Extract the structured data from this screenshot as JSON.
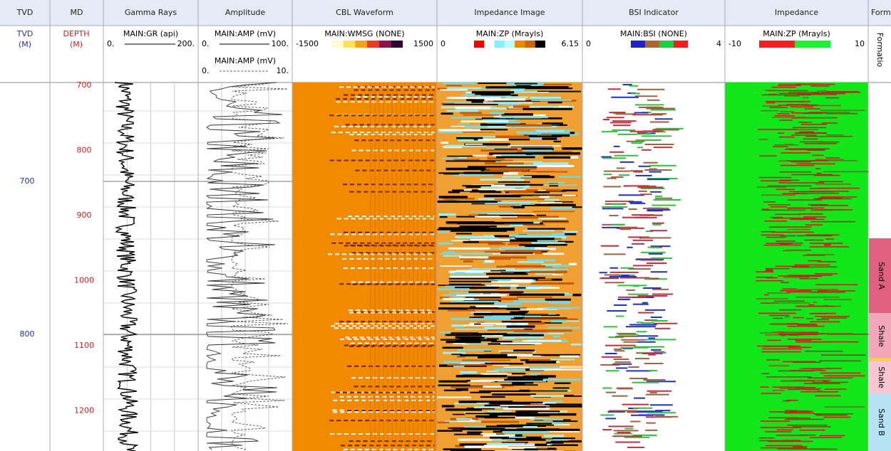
{
  "headers": [
    "TVD",
    "MD",
    "Gamma Rays",
    "Amplitude",
    "CBL Waveform",
    "Impedance Image",
    "BSI Indicator",
    "Impedance",
    "Form"
  ],
  "scales": {
    "tvd": {
      "name": "TVD",
      "unit": "(M)"
    },
    "md": {
      "name": "DEPTH",
      "unit": "(M)"
    },
    "gr": {
      "curve": "MAIN:GR (api)",
      "min": "0.",
      "max": "200."
    },
    "amp": [
      {
        "curve": "MAIN:AMP (mV)",
        "min": "0.",
        "max": "100."
      },
      {
        "curve": "MAIN:AMP (mV)",
        "min": "0.",
        "max": "10."
      }
    ],
    "cbl": {
      "curve": "MAIN:WMSG (NONE)",
      "min": "-1500",
      "max": "1500"
    },
    "image": {
      "curve": "MAIN:ZP (Mrayls)",
      "min": "0",
      "max": "6.15"
    },
    "bsi": {
      "curve": "MAIN:BSI (NONE)",
      "min": "0",
      "max": "4"
    },
    "imp": {
      "curve": "MAIN:ZP (Mrayls)",
      "min": "-10",
      "max": "10"
    },
    "form": "Formatio"
  },
  "md_labels": [
    700,
    800,
    900,
    1000,
    1100,
    1200
  ],
  "tvd_labels": [
    700,
    800
  ],
  "formations": [
    {
      "name": "Sand A",
      "color": "#e0607f"
    },
    {
      "name": "Shale",
      "color": "#f2a7b8"
    },
    {
      "name": "Shale",
      "color": "#f7c6d2"
    },
    {
      "name": "Sand B",
      "color": "#b5e3f5"
    }
  ]
}
